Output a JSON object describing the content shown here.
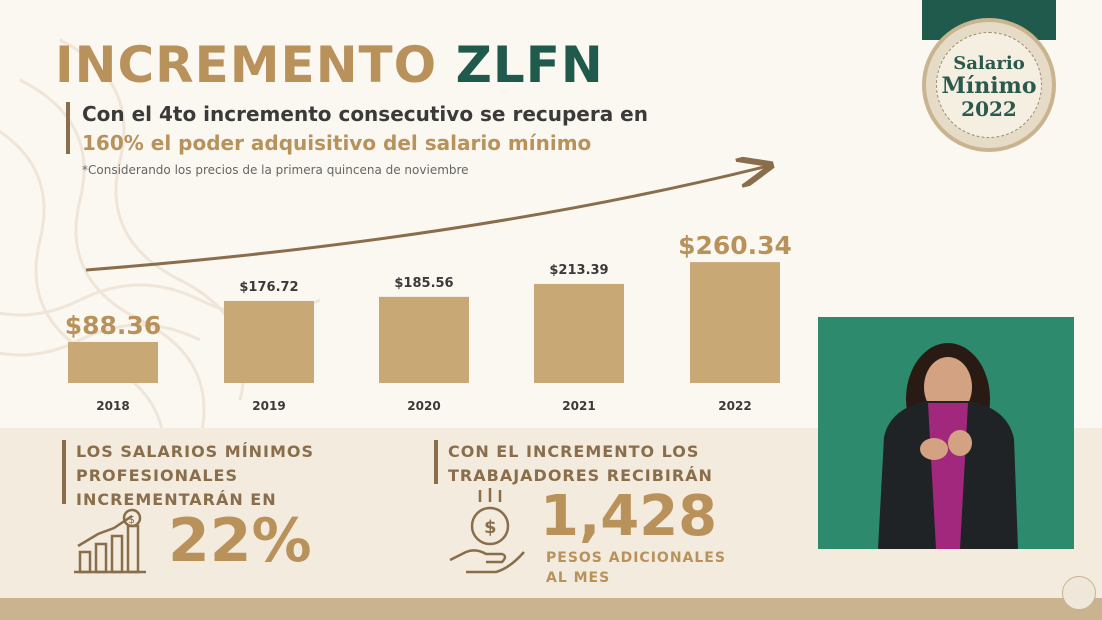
{
  "header": {
    "title_part1": "INCREMENTO",
    "title_part2": "ZLFN",
    "subtitle_line1": "Con el 4to incremento consecutivo se recupera en",
    "subtitle_line2": "160% el poder adquisitivo del salario mínimo",
    "note": "*Considerando los precios de la primera quincena de noviembre"
  },
  "badge": {
    "line1": "Salario",
    "line2": "Mínimo",
    "year": "2022"
  },
  "chart_data": {
    "type": "bar",
    "categories": [
      "2018",
      "2019",
      "2020",
      "2021",
      "2022"
    ],
    "values": [
      88.36,
      176.72,
      185.56,
      213.39,
      260.34
    ],
    "value_labels": [
      "$88.36",
      "$176.72",
      "$185.56",
      "$213.39",
      "$260.34"
    ],
    "ylim": [
      0,
      280
    ],
    "grid": false,
    "bar_color": "#c8a874",
    "trend_arrow": true
  },
  "blocks": {
    "left": {
      "line1": "LOS SALARIOS MÍNIMOS",
      "line2": "PROFESIONALES",
      "line3": "INCREMENTARÁN EN",
      "value": "22%",
      "icon": "growth-chart-icon"
    },
    "right": {
      "line1": "CON EL INCREMENTO LOS",
      "line2": "TRABAJADORES RECIBIRÁN",
      "value": "1,428",
      "caption1": "PESOS ADICIONALES",
      "caption2": "AL MES",
      "icon": "money-hand-icon"
    }
  },
  "colors": {
    "gold": "#b9925b",
    "green": "#1f5a4d",
    "brown": "#8a6e4b",
    "background": "#fbf7f1"
  }
}
